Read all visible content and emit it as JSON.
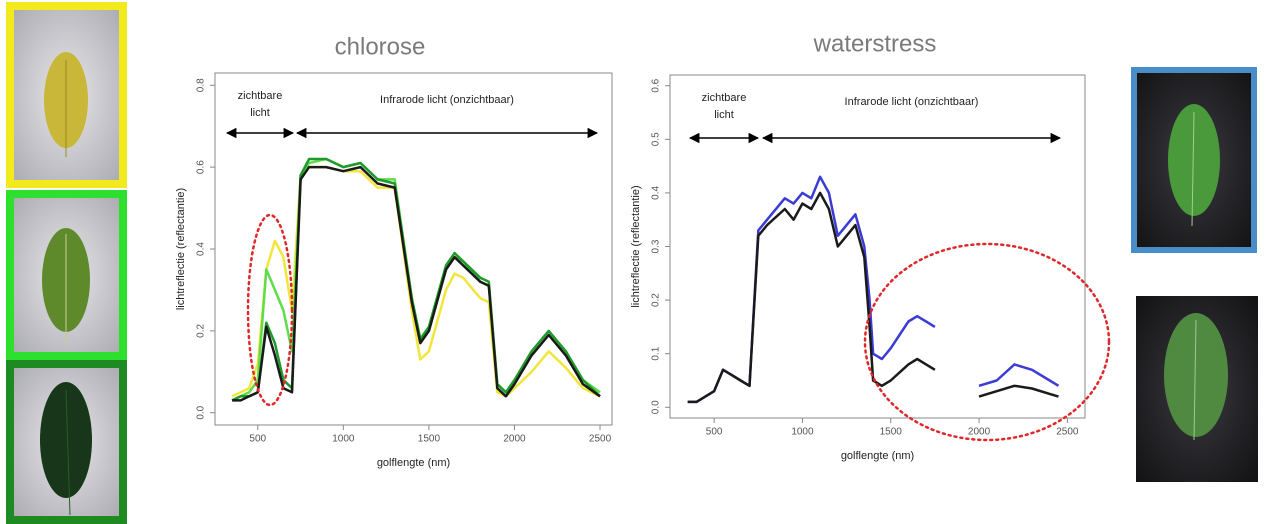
{
  "chart_data": [
    {
      "type": "line",
      "title": "chlorose",
      "xlabel": "golflengte (nm)",
      "ylabel": "lichtreflectie (reflectantie)",
      "annotations": [
        "zichtbare",
        "licht",
        "Infrarode licht (onzichtbaar)"
      ],
      "xlim": [
        250,
        2570
      ],
      "ylim": [
        -0.03,
        0.83
      ],
      "xticks": [
        500,
        1000,
        1500,
        2000,
        2500
      ],
      "yticks": [
        {
          "value": 0,
          "label": "0.0"
        },
        0.2,
        0.4,
        0.6,
        0.8
      ],
      "x": [
        350,
        400,
        450,
        500,
        550,
        600,
        650,
        700,
        750,
        800,
        900,
        1000,
        1100,
        1200,
        1300,
        1400,
        1450,
        1500,
        1600,
        1650,
        1700,
        1800,
        1850,
        1900,
        1950,
        2000,
        2100,
        2200,
        2300,
        2400,
        2500
      ],
      "series": [
        {
          "color": "#f2e63a",
          "values": [
            0.04,
            0.05,
            0.06,
            0.12,
            0.35,
            0.42,
            0.38,
            0.25,
            0.58,
            0.6,
            0.6,
            0.59,
            0.59,
            0.55,
            0.55,
            0.25,
            0.13,
            0.15,
            0.3,
            0.34,
            0.33,
            0.28,
            0.27,
            0.05,
            0.04,
            0.06,
            0.1,
            0.15,
            0.11,
            0.06,
            0.04
          ]
        },
        {
          "color": "#5fdc4a",
          "values": [
            0.03,
            0.04,
            0.05,
            0.08,
            0.35,
            0.3,
            0.25,
            0.15,
            0.58,
            0.61,
            0.62,
            0.6,
            0.61,
            0.57,
            0.57,
            0.28,
            0.18,
            0.2,
            0.35,
            0.38,
            0.37,
            0.32,
            0.31,
            0.07,
            0.05,
            0.08,
            0.14,
            0.19,
            0.15,
            0.08,
            0.05
          ]
        },
        {
          "color": "#1f9a2a",
          "values": [
            0.03,
            0.04,
            0.04,
            0.05,
            0.22,
            0.17,
            0.08,
            0.06,
            0.58,
            0.62,
            0.62,
            0.6,
            0.61,
            0.57,
            0.56,
            0.28,
            0.18,
            0.21,
            0.36,
            0.39,
            0.37,
            0.33,
            0.32,
            0.07,
            0.05,
            0.08,
            0.15,
            0.2,
            0.15,
            0.08,
            0.04
          ]
        },
        {
          "color": "#1a1a1a",
          "values": [
            0.03,
            0.03,
            0.04,
            0.05,
            0.21,
            0.14,
            0.06,
            0.05,
            0.57,
            0.6,
            0.6,
            0.59,
            0.6,
            0.56,
            0.55,
            0.27,
            0.17,
            0.2,
            0.35,
            0.38,
            0.36,
            0.32,
            0.31,
            0.06,
            0.04,
            0.07,
            0.14,
            0.19,
            0.14,
            0.07,
            0.04
          ]
        }
      ]
    },
    {
      "type": "line",
      "title": "waterstress",
      "xlabel": "golflengte (nm)",
      "ylabel": "lichtreflectie (reflectantie)",
      "annotations": [
        "zichtbare",
        "licht",
        "Infrarode licht (onzichtbaar)"
      ],
      "xlim": [
        250,
        2600
      ],
      "ylim": [
        -0.02,
        0.62
      ],
      "xticks": [
        500,
        1000,
        1500,
        2000,
        2500
      ],
      "yticks": [
        {
          "value": 0,
          "label": "0.0"
        },
        0.1,
        0.2,
        0.3,
        0.4,
        0.5,
        0.6
      ],
      "x": [
        350,
        400,
        450,
        500,
        550,
        600,
        650,
        700,
        750,
        800,
        900,
        950,
        1000,
        1050,
        1100,
        1150,
        1200,
        1250,
        1300,
        1350,
        1380,
        1400,
        1450,
        1500,
        1600,
        1650,
        1700,
        1750,
        1800,
        1950,
        2000,
        2100,
        2200,
        2300,
        2400,
        2450,
        2500
      ],
      "series": [
        {
          "color": "#3b3bd6",
          "values": [
            0.01,
            0.01,
            0.02,
            0.03,
            0.07,
            0.06,
            0.05,
            0.04,
            0.33,
            0.35,
            0.39,
            0.38,
            0.4,
            0.39,
            0.43,
            0.4,
            0.32,
            0.34,
            0.36,
            0.3,
            0.2,
            0.1,
            0.09,
            0.11,
            0.16,
            0.17,
            0.16,
            0.15,
            null,
            null,
            0.04,
            0.05,
            0.08,
            0.07,
            0.05,
            0.04,
            null
          ]
        },
        {
          "color": "#1a1a1a",
          "values": [
            0.01,
            0.01,
            0.02,
            0.03,
            0.07,
            0.06,
            0.05,
            0.04,
            0.32,
            0.34,
            0.37,
            0.35,
            0.38,
            0.37,
            0.4,
            0.37,
            0.3,
            0.32,
            0.34,
            0.28,
            0.15,
            0.05,
            0.04,
            0.05,
            0.08,
            0.09,
            0.08,
            0.07,
            null,
            null,
            0.02,
            0.03,
            0.04,
            0.035,
            0.025,
            0.02,
            null
          ]
        }
      ]
    }
  ]
}
